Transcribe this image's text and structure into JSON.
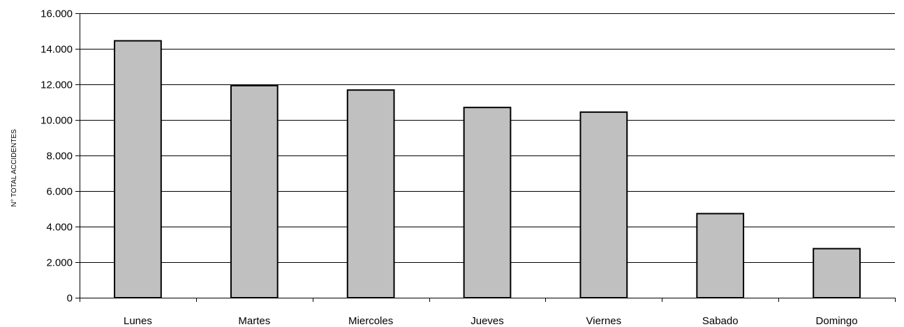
{
  "chart_data": {
    "type": "bar",
    "title": "",
    "xlabel": "",
    "ylabel": "N° TOTAL ACCIDENTES",
    "categories": [
      "Lunes",
      "Martes",
      "Miercoles",
      "Jueves",
      "Viernes",
      "Sabado",
      "Domingo"
    ],
    "values": [
      14450,
      11930,
      11680,
      10700,
      10440,
      4730,
      2760
    ],
    "ylim": [
      0,
      16000
    ],
    "yticks": [
      0,
      2000,
      4000,
      6000,
      8000,
      10000,
      12000,
      14000,
      16000
    ],
    "ytick_labels": [
      "0",
      "2.000",
      "4.000",
      "6.000",
      "8.000",
      "10.000",
      "12.000",
      "14.000",
      "16.000"
    ],
    "grid": true,
    "legend": "none",
    "colors": {
      "bar_fill": "#c0c0c0",
      "bar_stroke": "#000000",
      "grid": "#000000",
      "axis": "#000000"
    }
  }
}
